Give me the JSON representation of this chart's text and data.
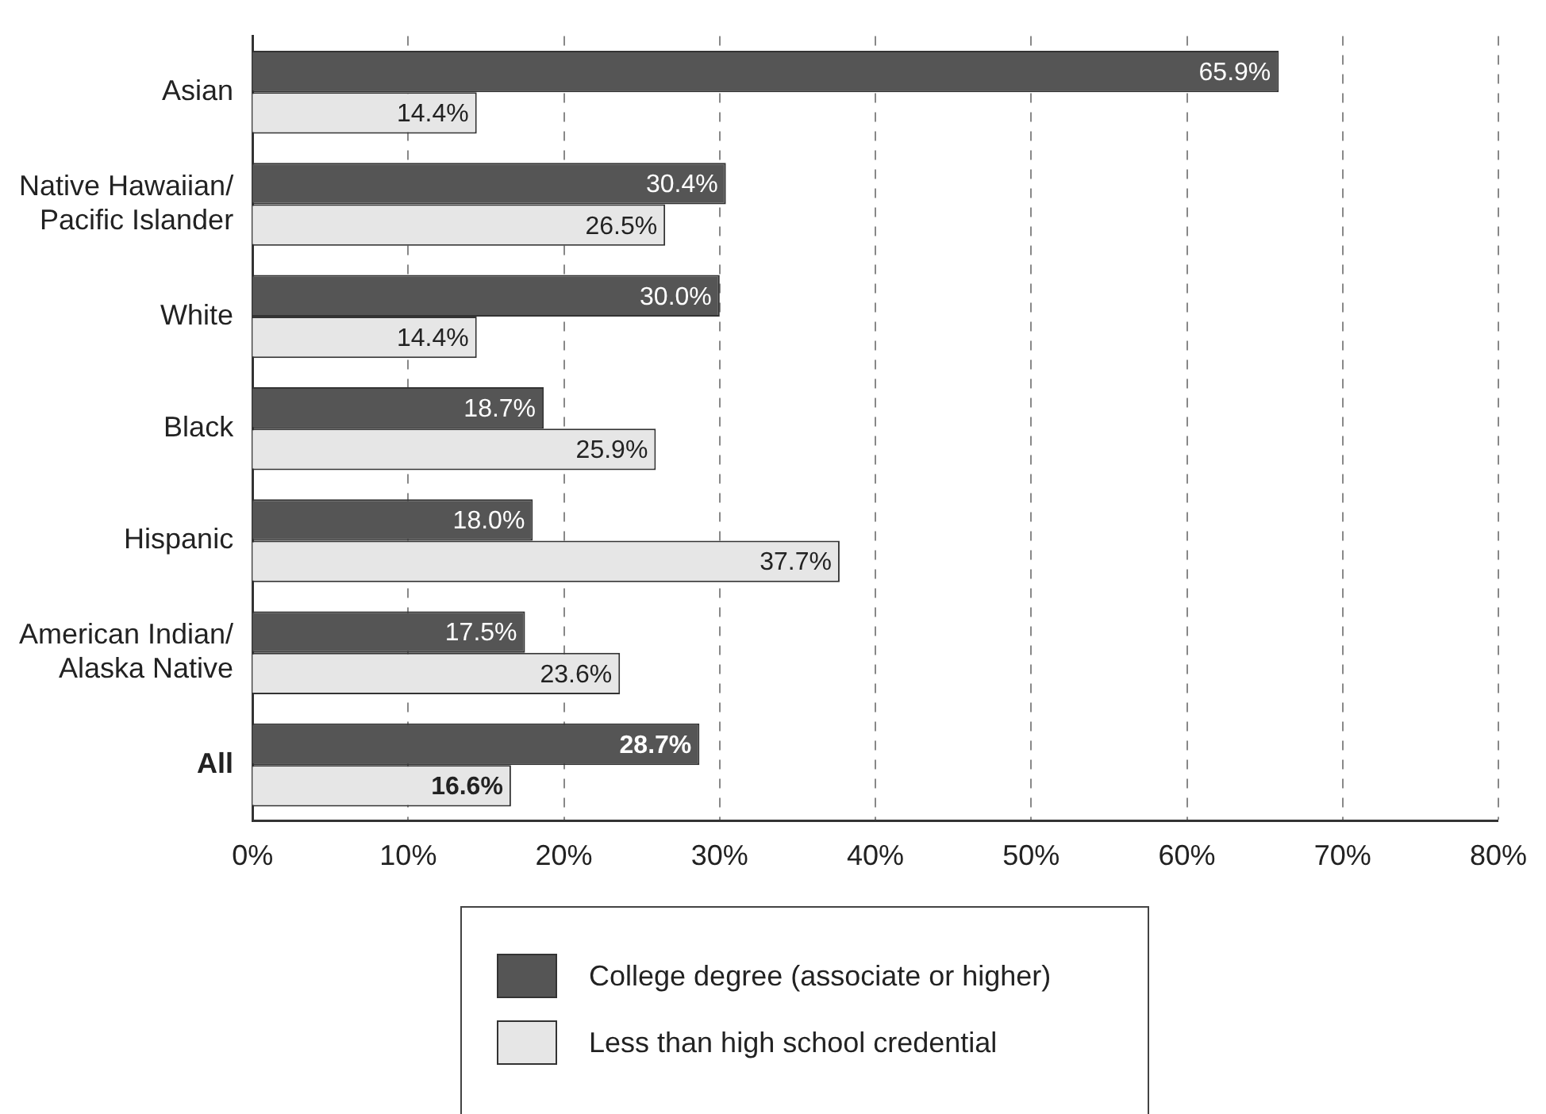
{
  "chart_data": {
    "type": "bar",
    "orientation": "horizontal",
    "categories": [
      "Asian",
      "Native Hawaiian/\nPacific Islander",
      "White",
      "Black",
      "Hispanic",
      "American Indian/\nAlaska Native",
      "All"
    ],
    "series": [
      {
        "name": "College degree (associate or higher)",
        "color": "#555555",
        "values": [
          65.9,
          30.4,
          30.0,
          18.7,
          18.0,
          17.5,
          28.7
        ],
        "value_labels": [
          "65.9%",
          "30.4%",
          "30.0%",
          "18.7%",
          "18.0%",
          "17.5%",
          "28.7%"
        ]
      },
      {
        "name": "Less than high school credential",
        "color": "#e6e6e6",
        "values": [
          14.4,
          26.5,
          14.4,
          25.9,
          37.7,
          23.6,
          16.6
        ],
        "value_labels": [
          "14.4%",
          "26.5%",
          "14.4%",
          "25.9%",
          "37.7%",
          "23.6%",
          "16.6%"
        ]
      }
    ],
    "xlim": [
      0,
      80
    ],
    "xticks": [
      {
        "value": 0,
        "label": "0%"
      },
      {
        "value": 10,
        "label": "10%"
      },
      {
        "value": 20,
        "label": "20%"
      },
      {
        "value": 30,
        "label": "30%"
      },
      {
        "value": 40,
        "label": "40%"
      },
      {
        "value": 50,
        "label": "50%"
      },
      {
        "value": 60,
        "label": "60%"
      },
      {
        "value": 70,
        "label": "70%"
      },
      {
        "value": 80,
        "label": "80%"
      }
    ],
    "grid": "x",
    "legend": "bottom"
  }
}
